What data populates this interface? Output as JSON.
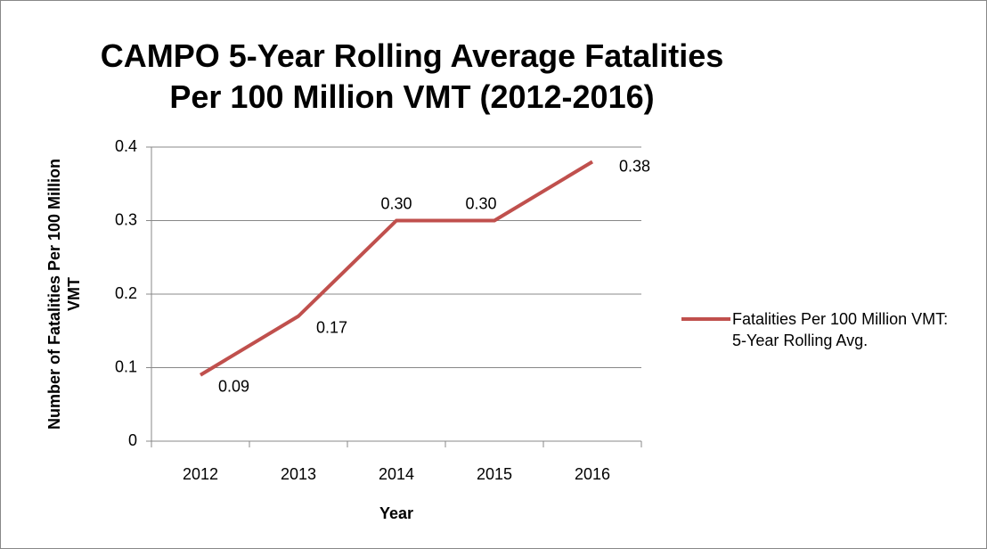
{
  "chart_data": {
    "type": "line",
    "title": "CAMPO 5-Year Rolling Average Fatalities Per 100 Million VMT (2012-2016)",
    "x_label": "Year",
    "y_label": "Number of Fatalities Per 100 Million VMT",
    "categories": [
      "2012",
      "2013",
      "2014",
      "2015",
      "2016"
    ],
    "series": [
      {
        "name": "Fatalities Per 100 Million VMT: 5-Year Rolling Avg.",
        "color": "#c0504d",
        "values": [
          0.09,
          0.17,
          0.3,
          0.3,
          0.38
        ],
        "value_labels": [
          "0.09",
          "0.17",
          "0.30",
          "0.30",
          "0.38"
        ]
      }
    ],
    "ylim": [
      0,
      0.4
    ],
    "yticks": [
      0,
      0.1,
      0.2,
      0.3,
      0.4
    ],
    "grid": true,
    "legend": "right"
  }
}
